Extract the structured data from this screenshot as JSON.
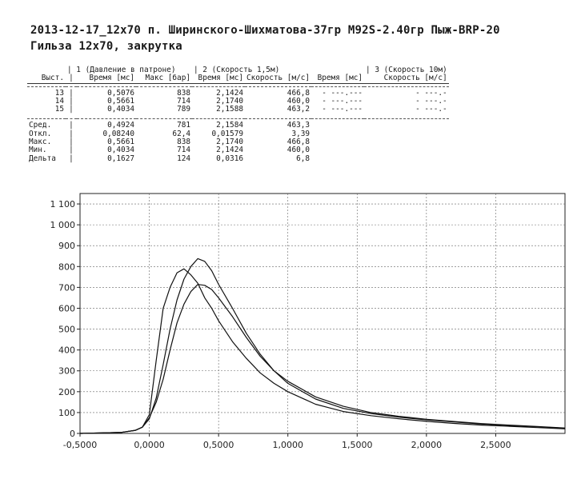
{
  "header": {
    "line1": "2013-12-17_12x70 п. Ширинского-Шихматова-37гр M92S-2.40гр Пыж-BRP-20",
    "line2": "Гильза 12x70, закрутка"
  },
  "table": {
    "group_headers": [
      "| 1 (Давление в патроне)",
      "| 2 (Скорость 1,5м)",
      "| 3 (Скорость 10м)"
    ],
    "col_headers": [
      "Выст.",
      "Время [мс]",
      "Макс [бар]",
      "Время [мс]",
      "Скорость [м/с]",
      "Время [мс]",
      "Скорость [м/с]"
    ],
    "shots": [
      {
        "n": "13",
        "t1": "0,5076",
        "pmax": "838",
        "t2": "2,1424",
        "v2": "466,8",
        "t3": "- ---.---",
        "v3": "- ---.-"
      },
      {
        "n": "14",
        "t1": "0,5661",
        "pmax": "714",
        "t2": "2,1740",
        "v2": "460,0",
        "t3": "- ---.---",
        "v3": "- ---.-"
      },
      {
        "n": "15",
        "t1": "0,4034",
        "pmax": "789",
        "t2": "2,1588",
        "v2": "463,2",
        "t3": "- ---.---",
        "v3": "- ---.-"
      }
    ],
    "stats": [
      {
        "label": "Сред.",
        "t1": "0,4924",
        "pmax": "781",
        "t2": "2,1584",
        "v2": "463,3"
      },
      {
        "label": "Откл.",
        "t1": "0,08240",
        "pmax": "62,4",
        "t2": "0,01579",
        "v2": "3,39"
      },
      {
        "label": "Макс.",
        "t1": "0,5661",
        "pmax": "838",
        "t2": "2,1740",
        "v2": "466,8"
      },
      {
        "label": "Мин.",
        "t1": "0,4034",
        "pmax": "714",
        "t2": "2,1424",
        "v2": "460,0"
      },
      {
        "label": "Дельта",
        "t1": "0,1627",
        "pmax": "124",
        "t2": "0,0316",
        "v2": "6,8"
      }
    ]
  },
  "chart_data": {
    "type": "line",
    "xlim": [
      -0.5,
      3.0
    ],
    "ylim": [
      0,
      1150
    ],
    "x_ticks": [
      -0.5,
      0.0,
      0.5,
      1.0,
      1.5,
      2.0,
      2.5
    ],
    "x_tick_labels": [
      "-0,5000",
      "0,0000",
      "0,5000",
      "1,0000",
      "1,5000",
      "2,0000",
      "2,5000"
    ],
    "y_ticks": [
      0,
      100,
      200,
      300,
      400,
      500,
      600,
      700,
      800,
      900,
      1000,
      1100
    ],
    "y_tick_labels": [
      "0",
      "100",
      "200",
      "300",
      "400",
      "500",
      "600",
      "700",
      "800",
      "900",
      "1 000",
      "1 100"
    ],
    "grid": true,
    "series": [
      {
        "x": [
          -0.5,
          -0.2,
          -0.1,
          -0.05,
          0.0,
          0.05,
          0.1,
          0.15,
          0.2,
          0.25,
          0.3,
          0.35,
          0.4,
          0.45,
          0.5,
          0.6,
          0.7,
          0.8,
          0.9,
          1.0,
          1.2,
          1.4,
          1.6,
          1.8,
          2.0,
          2.2,
          2.4,
          2.6,
          2.8,
          3.0
        ],
        "y": [
          0,
          5,
          15,
          30,
          70,
          170,
          330,
          500,
          640,
          740,
          800,
          838,
          825,
          780,
          715,
          600,
          480,
          380,
          300,
          240,
          165,
          120,
          95,
          78,
          65,
          55,
          45,
          38,
          32,
          25
        ]
      },
      {
        "x": [
          -0.5,
          -0.2,
          -0.1,
          -0.05,
          0.0,
          0.05,
          0.1,
          0.15,
          0.2,
          0.25,
          0.3,
          0.35,
          0.4,
          0.45,
          0.5,
          0.6,
          0.7,
          0.8,
          0.9,
          1.0,
          1.2,
          1.4,
          1.6,
          1.8,
          2.0,
          2.2,
          2.4,
          2.6,
          2.8,
          3.0
        ],
        "y": [
          0,
          5,
          15,
          30,
          90,
          350,
          600,
          700,
          770,
          789,
          760,
          720,
          650,
          600,
          540,
          440,
          360,
          290,
          240,
          200,
          140,
          105,
          85,
          70,
          58,
          48,
          40,
          34,
          28,
          22
        ]
      },
      {
        "x": [
          -0.5,
          -0.2,
          -0.1,
          -0.05,
          0.0,
          0.05,
          0.1,
          0.15,
          0.2,
          0.25,
          0.3,
          0.35,
          0.4,
          0.45,
          0.5,
          0.6,
          0.7,
          0.8,
          0.9,
          1.0,
          1.2,
          1.4,
          1.6,
          1.8,
          2.0,
          2.2,
          2.4,
          2.6,
          2.8,
          3.0
        ],
        "y": [
          0,
          5,
          15,
          30,
          75,
          150,
          260,
          400,
          530,
          620,
          680,
          714,
          710,
          690,
          650,
          560,
          460,
          370,
          300,
          250,
          175,
          130,
          100,
          82,
          68,
          57,
          47,
          40,
          33,
          26
        ]
      }
    ]
  }
}
